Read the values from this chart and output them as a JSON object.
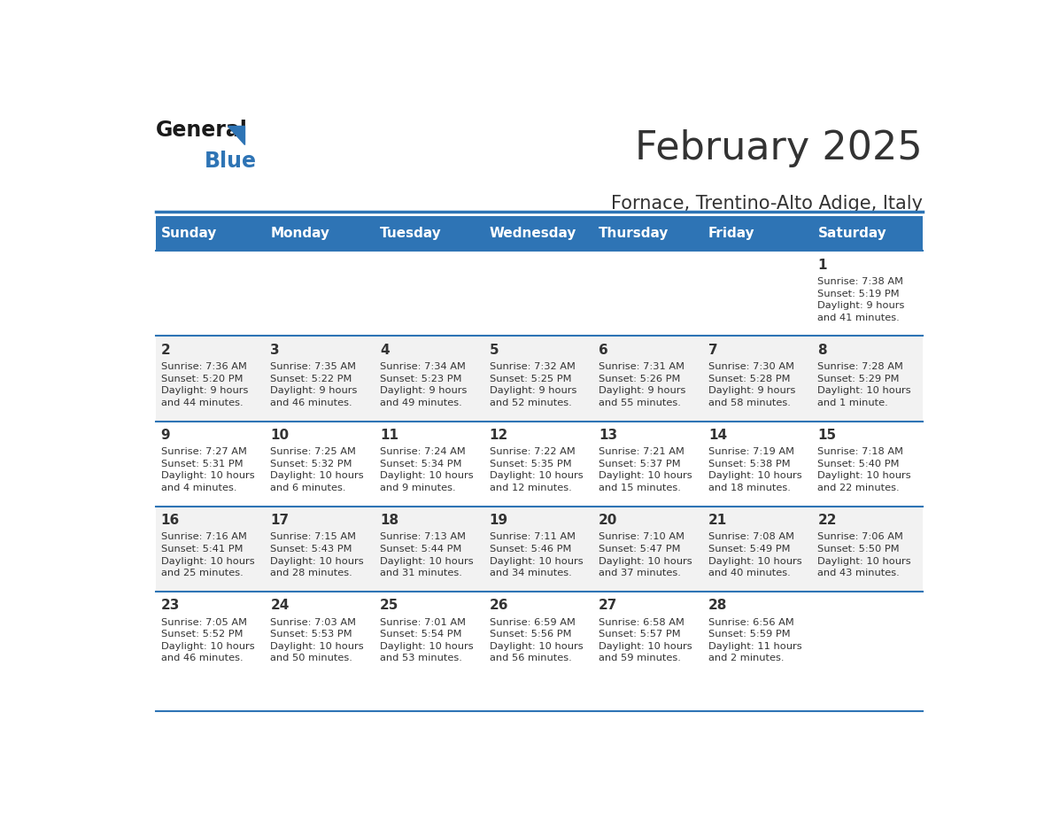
{
  "title": "February 2025",
  "subtitle": "Fornace, Trentino-Alto Adige, Italy",
  "header_bg": "#2E74B5",
  "header_text": "#FFFFFF",
  "odd_row_bg": "#FFFFFF",
  "even_row_bg": "#F2F2F2",
  "day_headers": [
    "Sunday",
    "Monday",
    "Tuesday",
    "Wednesday",
    "Thursday",
    "Friday",
    "Saturday"
  ],
  "cell_text_color": "#333333",
  "day_num_color": "#333333",
  "separator_color": "#2E74B5",
  "logo_general_color": "#1A1A1A",
  "logo_blue_color": "#2E74B5",
  "calendar_data": [
    [
      {
        "day": null,
        "info": null
      },
      {
        "day": null,
        "info": null
      },
      {
        "day": null,
        "info": null
      },
      {
        "day": null,
        "info": null
      },
      {
        "day": null,
        "info": null
      },
      {
        "day": null,
        "info": null
      },
      {
        "day": 1,
        "info": "Sunrise: 7:38 AM\nSunset: 5:19 PM\nDaylight: 9 hours\nand 41 minutes."
      }
    ],
    [
      {
        "day": 2,
        "info": "Sunrise: 7:36 AM\nSunset: 5:20 PM\nDaylight: 9 hours\nand 44 minutes."
      },
      {
        "day": 3,
        "info": "Sunrise: 7:35 AM\nSunset: 5:22 PM\nDaylight: 9 hours\nand 46 minutes."
      },
      {
        "day": 4,
        "info": "Sunrise: 7:34 AM\nSunset: 5:23 PM\nDaylight: 9 hours\nand 49 minutes."
      },
      {
        "day": 5,
        "info": "Sunrise: 7:32 AM\nSunset: 5:25 PM\nDaylight: 9 hours\nand 52 minutes."
      },
      {
        "day": 6,
        "info": "Sunrise: 7:31 AM\nSunset: 5:26 PM\nDaylight: 9 hours\nand 55 minutes."
      },
      {
        "day": 7,
        "info": "Sunrise: 7:30 AM\nSunset: 5:28 PM\nDaylight: 9 hours\nand 58 minutes."
      },
      {
        "day": 8,
        "info": "Sunrise: 7:28 AM\nSunset: 5:29 PM\nDaylight: 10 hours\nand 1 minute."
      }
    ],
    [
      {
        "day": 9,
        "info": "Sunrise: 7:27 AM\nSunset: 5:31 PM\nDaylight: 10 hours\nand 4 minutes."
      },
      {
        "day": 10,
        "info": "Sunrise: 7:25 AM\nSunset: 5:32 PM\nDaylight: 10 hours\nand 6 minutes."
      },
      {
        "day": 11,
        "info": "Sunrise: 7:24 AM\nSunset: 5:34 PM\nDaylight: 10 hours\nand 9 minutes."
      },
      {
        "day": 12,
        "info": "Sunrise: 7:22 AM\nSunset: 5:35 PM\nDaylight: 10 hours\nand 12 minutes."
      },
      {
        "day": 13,
        "info": "Sunrise: 7:21 AM\nSunset: 5:37 PM\nDaylight: 10 hours\nand 15 minutes."
      },
      {
        "day": 14,
        "info": "Sunrise: 7:19 AM\nSunset: 5:38 PM\nDaylight: 10 hours\nand 18 minutes."
      },
      {
        "day": 15,
        "info": "Sunrise: 7:18 AM\nSunset: 5:40 PM\nDaylight: 10 hours\nand 22 minutes."
      }
    ],
    [
      {
        "day": 16,
        "info": "Sunrise: 7:16 AM\nSunset: 5:41 PM\nDaylight: 10 hours\nand 25 minutes."
      },
      {
        "day": 17,
        "info": "Sunrise: 7:15 AM\nSunset: 5:43 PM\nDaylight: 10 hours\nand 28 minutes."
      },
      {
        "day": 18,
        "info": "Sunrise: 7:13 AM\nSunset: 5:44 PM\nDaylight: 10 hours\nand 31 minutes."
      },
      {
        "day": 19,
        "info": "Sunrise: 7:11 AM\nSunset: 5:46 PM\nDaylight: 10 hours\nand 34 minutes."
      },
      {
        "day": 20,
        "info": "Sunrise: 7:10 AM\nSunset: 5:47 PM\nDaylight: 10 hours\nand 37 minutes."
      },
      {
        "day": 21,
        "info": "Sunrise: 7:08 AM\nSunset: 5:49 PM\nDaylight: 10 hours\nand 40 minutes."
      },
      {
        "day": 22,
        "info": "Sunrise: 7:06 AM\nSunset: 5:50 PM\nDaylight: 10 hours\nand 43 minutes."
      }
    ],
    [
      {
        "day": 23,
        "info": "Sunrise: 7:05 AM\nSunset: 5:52 PM\nDaylight: 10 hours\nand 46 minutes."
      },
      {
        "day": 24,
        "info": "Sunrise: 7:03 AM\nSunset: 5:53 PM\nDaylight: 10 hours\nand 50 minutes."
      },
      {
        "day": 25,
        "info": "Sunrise: 7:01 AM\nSunset: 5:54 PM\nDaylight: 10 hours\nand 53 minutes."
      },
      {
        "day": 26,
        "info": "Sunrise: 6:59 AM\nSunset: 5:56 PM\nDaylight: 10 hours\nand 56 minutes."
      },
      {
        "day": 27,
        "info": "Sunrise: 6:58 AM\nSunset: 5:57 PM\nDaylight: 10 hours\nand 59 minutes."
      },
      {
        "day": 28,
        "info": "Sunrise: 6:56 AM\nSunset: 5:59 PM\nDaylight: 11 hours\nand 2 minutes."
      },
      {
        "day": null,
        "info": null
      }
    ]
  ]
}
